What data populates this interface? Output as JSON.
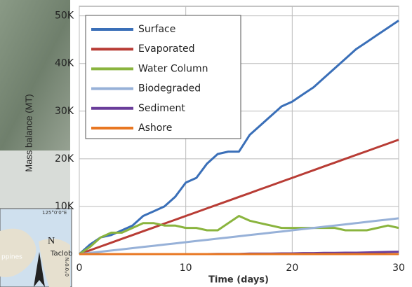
{
  "chart_data": {
    "type": "line",
    "xlabel": "Time (days)",
    "ylabel": "Mass balance (MT)",
    "x": [
      0,
      1,
      2,
      3,
      4,
      5,
      6,
      7,
      8,
      9,
      10,
      11,
      12,
      13,
      14,
      15,
      16,
      17,
      18,
      19,
      20,
      21,
      22,
      23,
      24,
      25,
      26,
      27,
      28,
      29,
      30
    ],
    "xlim": [
      0,
      30
    ],
    "xticks": [
      0,
      10,
      20,
      30
    ],
    "ylim": [
      0,
      52000
    ],
    "yticks": [
      {
        "value": 10000,
        "label": "10K"
      },
      {
        "value": 20000,
        "label": "20K"
      },
      {
        "value": 30000,
        "label": "30K"
      },
      {
        "value": 40000,
        "label": "40K"
      },
      {
        "value": 50000,
        "label": "50K"
      }
    ],
    "grid": true,
    "legend": "upper left",
    "series": [
      {
        "name": "Surface",
        "color": "#3a6fb8",
        "values": [
          0,
          2000,
          3500,
          4000,
          5000,
          6000,
          8000,
          9000,
          10000,
          12000,
          15000,
          16000,
          19000,
          21000,
          21500,
          21500,
          25000,
          27000,
          29000,
          31000,
          32000,
          33500,
          35000,
          37000,
          39000,
          41000,
          43000,
          44500,
          46000,
          47500,
          49000
        ]
      },
      {
        "name": "Evaporated",
        "color": "#b83c35",
        "values": [
          0,
          800,
          1600,
          2400,
          3200,
          4000,
          4800,
          5600,
          6400,
          7200,
          8000,
          8800,
          9600,
          10400,
          11200,
          12000,
          12800,
          13600,
          14400,
          15200,
          16000,
          16800,
          17600,
          18400,
          19200,
          20000,
          20800,
          21600,
          22400,
          23200,
          24000
        ]
      },
      {
        "name": "Water Column",
        "color": "#8ab43e",
        "values": [
          0,
          1500,
          3500,
          4500,
          4500,
          5500,
          6500,
          6500,
          6000,
          6000,
          5500,
          5500,
          5000,
          5000,
          6500,
          8000,
          7000,
          6500,
          6000,
          5500,
          5500,
          5500,
          5500,
          5500,
          5500,
          5000,
          5000,
          5000,
          5500,
          6000,
          5500
        ]
      },
      {
        "name": "Biodegraded",
        "color": "#97b1d8",
        "values": [
          0,
          250,
          500,
          750,
          1000,
          1250,
          1500,
          1750,
          2000,
          2250,
          2500,
          2750,
          3000,
          3250,
          3500,
          3750,
          4000,
          4250,
          4500,
          4750,
          5000,
          5250,
          5500,
          5750,
          6000,
          6250,
          6500,
          6750,
          7000,
          7250,
          7500
        ]
      },
      {
        "name": "Sediment",
        "color": "#6a3d9a",
        "values": [
          0,
          0,
          0,
          0,
          0,
          0,
          0,
          0,
          0,
          0,
          0,
          0,
          0,
          50,
          50,
          50,
          100,
          100,
          100,
          150,
          150,
          200,
          200,
          250,
          250,
          300,
          300,
          350,
          400,
          450,
          500
        ]
      },
      {
        "name": "Ashore",
        "color": "#e87722",
        "values": [
          0,
          0,
          0,
          0,
          0,
          0,
          0,
          0,
          0,
          0,
          0,
          0,
          0,
          0,
          0,
          0,
          0,
          0,
          0,
          0,
          0,
          0,
          0,
          0,
          0,
          0,
          0,
          0,
          0,
          0,
          0
        ]
      }
    ]
  },
  "map_inset": {
    "coordinate_top": "125°0'0\"E",
    "coordinate_side": "0°0'0\"N",
    "north": "N",
    "place": "Taclob",
    "region": "ppines"
  }
}
